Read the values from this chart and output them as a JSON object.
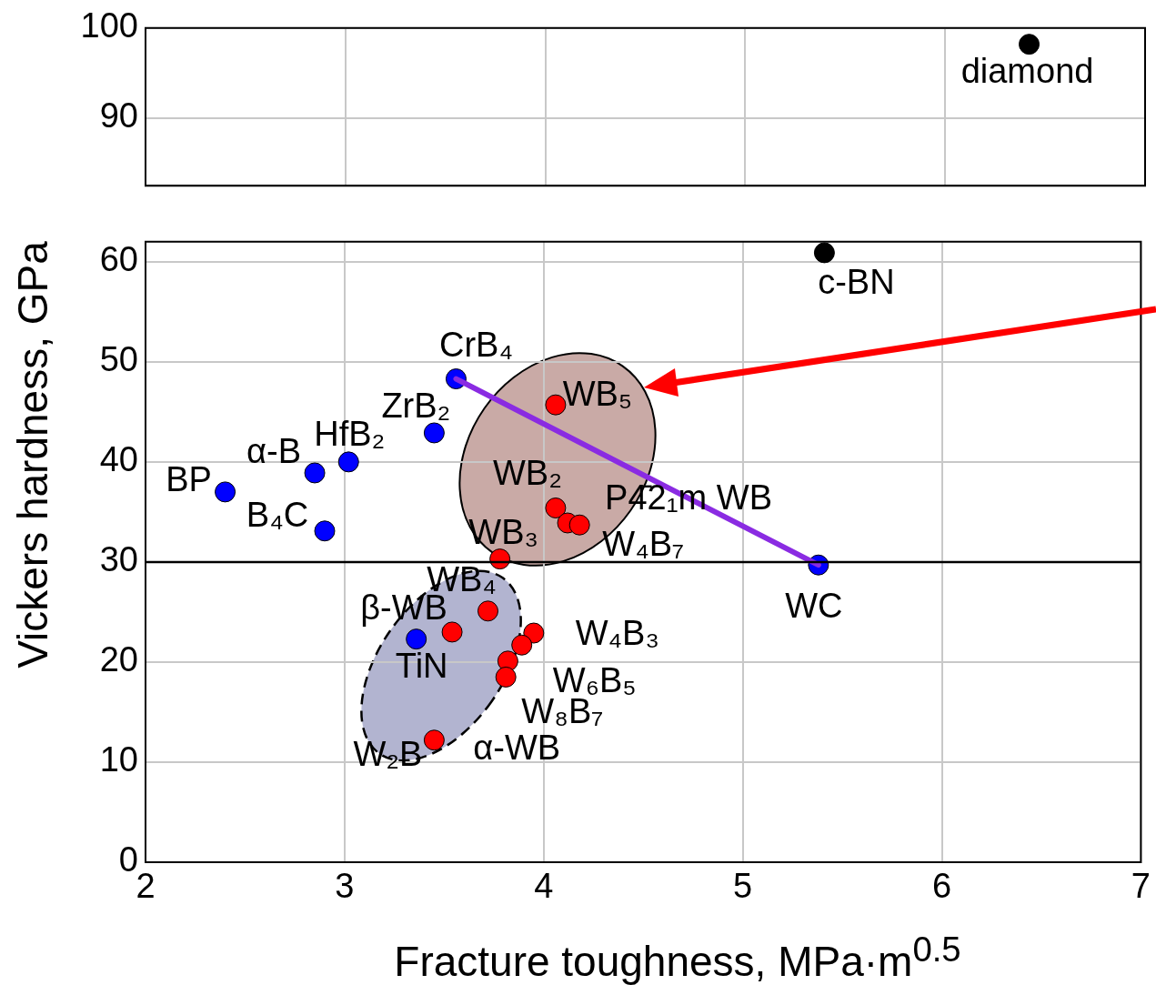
{
  "chart_data": [
    {
      "type": "scatter",
      "xlim": [
        2,
        7
      ],
      "xticks": [
        2,
        3,
        4,
        5,
        6,
        7
      ],
      "ylim": [
        82.5,
        100
      ],
      "yticks": [
        90,
        100
      ],
      "grid": true,
      "tick_labels": "y",
      "marker": "circle",
      "series": [
        {
          "color": "#000000",
          "x": [
            6.42
          ],
          "values": [
            98.2
          ]
        }
      ],
      "annotations": [
        {
          "text": "diamond",
          "x": 6.42,
          "y": 98.2
        }
      ]
    },
    {
      "type": "scatter",
      "xlim": [
        2,
        7
      ],
      "xticks": [
        2,
        3,
        4,
        5,
        6,
        7
      ],
      "ylim": [
        0,
        62
      ],
      "yticks": [
        0,
        10,
        20,
        30,
        40,
        50,
        60
      ],
      "grid": true,
      "marker": "circle",
      "xlabel": "Fracture toughness, MPa·m$^{0.5}$",
      "ylabel": "Vickers hardness, GPa",
      "series": [
        {
          "type": "line",
          "color": "#8a2be2",
          "x": [
            3.56,
            5.38
          ],
          "values": [
            48.3,
            29.7
          ],
          "marker": "none"
        },
        {
          "color": "#0000ff",
          "x": [
            2.4,
            2.85,
            3.02,
            2.9,
            3.45,
            3.56,
            3.36,
            5.38
          ],
          "values": [
            37.0,
            38.9,
            40.0,
            33.1,
            42.9,
            48.3,
            22.3,
            29.7
          ]
        },
        {
          "color": "#ff0000",
          "x": [
            4.06,
            4.06,
            4.12,
            4.18,
            3.78,
            3.72,
            3.54,
            3.95,
            3.89,
            3.82,
            3.81,
            3.45
          ],
          "values": [
            45.7,
            35.4,
            33.9,
            33.7,
            30.3,
            25.1,
            23.0,
            22.9,
            21.7,
            20.1,
            18.5,
            12.2
          ]
        },
        {
          "color": "#000000",
          "x": [
            5.41
          ],
          "values": [
            60.9
          ]
        }
      ],
      "ref_lines": [
        {
          "axis": "y",
          "value": 30,
          "color": "#000000"
        }
      ],
      "annotations": [
        {
          "text": "CrB₄",
          "x": 3.56,
          "y": 48.3
        },
        {
          "text": "ZrB₂",
          "x": 3.45,
          "y": 42.9
        },
        {
          "text": "HfB₂",
          "x": 3.02,
          "y": 40.0
        },
        {
          "text": "α-B",
          "x": 2.85,
          "y": 38.9
        },
        {
          "text": "BP",
          "x": 2.4,
          "y": 37.0
        },
        {
          "text": "B₄C",
          "x": 2.9,
          "y": 33.1
        },
        {
          "text": "WB₅",
          "x": 4.06,
          "y": 45.7
        },
        {
          "text": "WB₂",
          "x": 4.06,
          "y": 35.4
        },
        {
          "text": "P4̄2₁m WB",
          "x": 4.12,
          "y": 33.9
        },
        {
          "text": "W₄B₇",
          "x": 4.18,
          "y": 33.7
        },
        {
          "text": "WB₃",
          "x": 3.78,
          "y": 30.3
        },
        {
          "text": "WB₄",
          "x": 3.72,
          "y": 25.1
        },
        {
          "text": "β-WB",
          "x": 3.54,
          "y": 23.0
        },
        {
          "text": "TiN",
          "x": 3.36,
          "y": 22.3
        },
        {
          "text": "W₄B₃",
          "x": 3.95,
          "y": 22.9
        },
        {
          "text": "W₆B₅",
          "x": 3.89,
          "y": 21.7
        },
        {
          "text": "W₈B₇",
          "x": 3.82,
          "y": 20.1
        },
        {
          "text": "α-WB",
          "x": 3.81,
          "y": 18.5
        },
        {
          "text": "W₂B",
          "x": 3.45,
          "y": 12.2
        },
        {
          "text": "WC",
          "x": 5.38,
          "y": 29.7
        },
        {
          "text": "c-BN",
          "x": 5.41,
          "y": 60.9
        }
      ]
    }
  ]
}
